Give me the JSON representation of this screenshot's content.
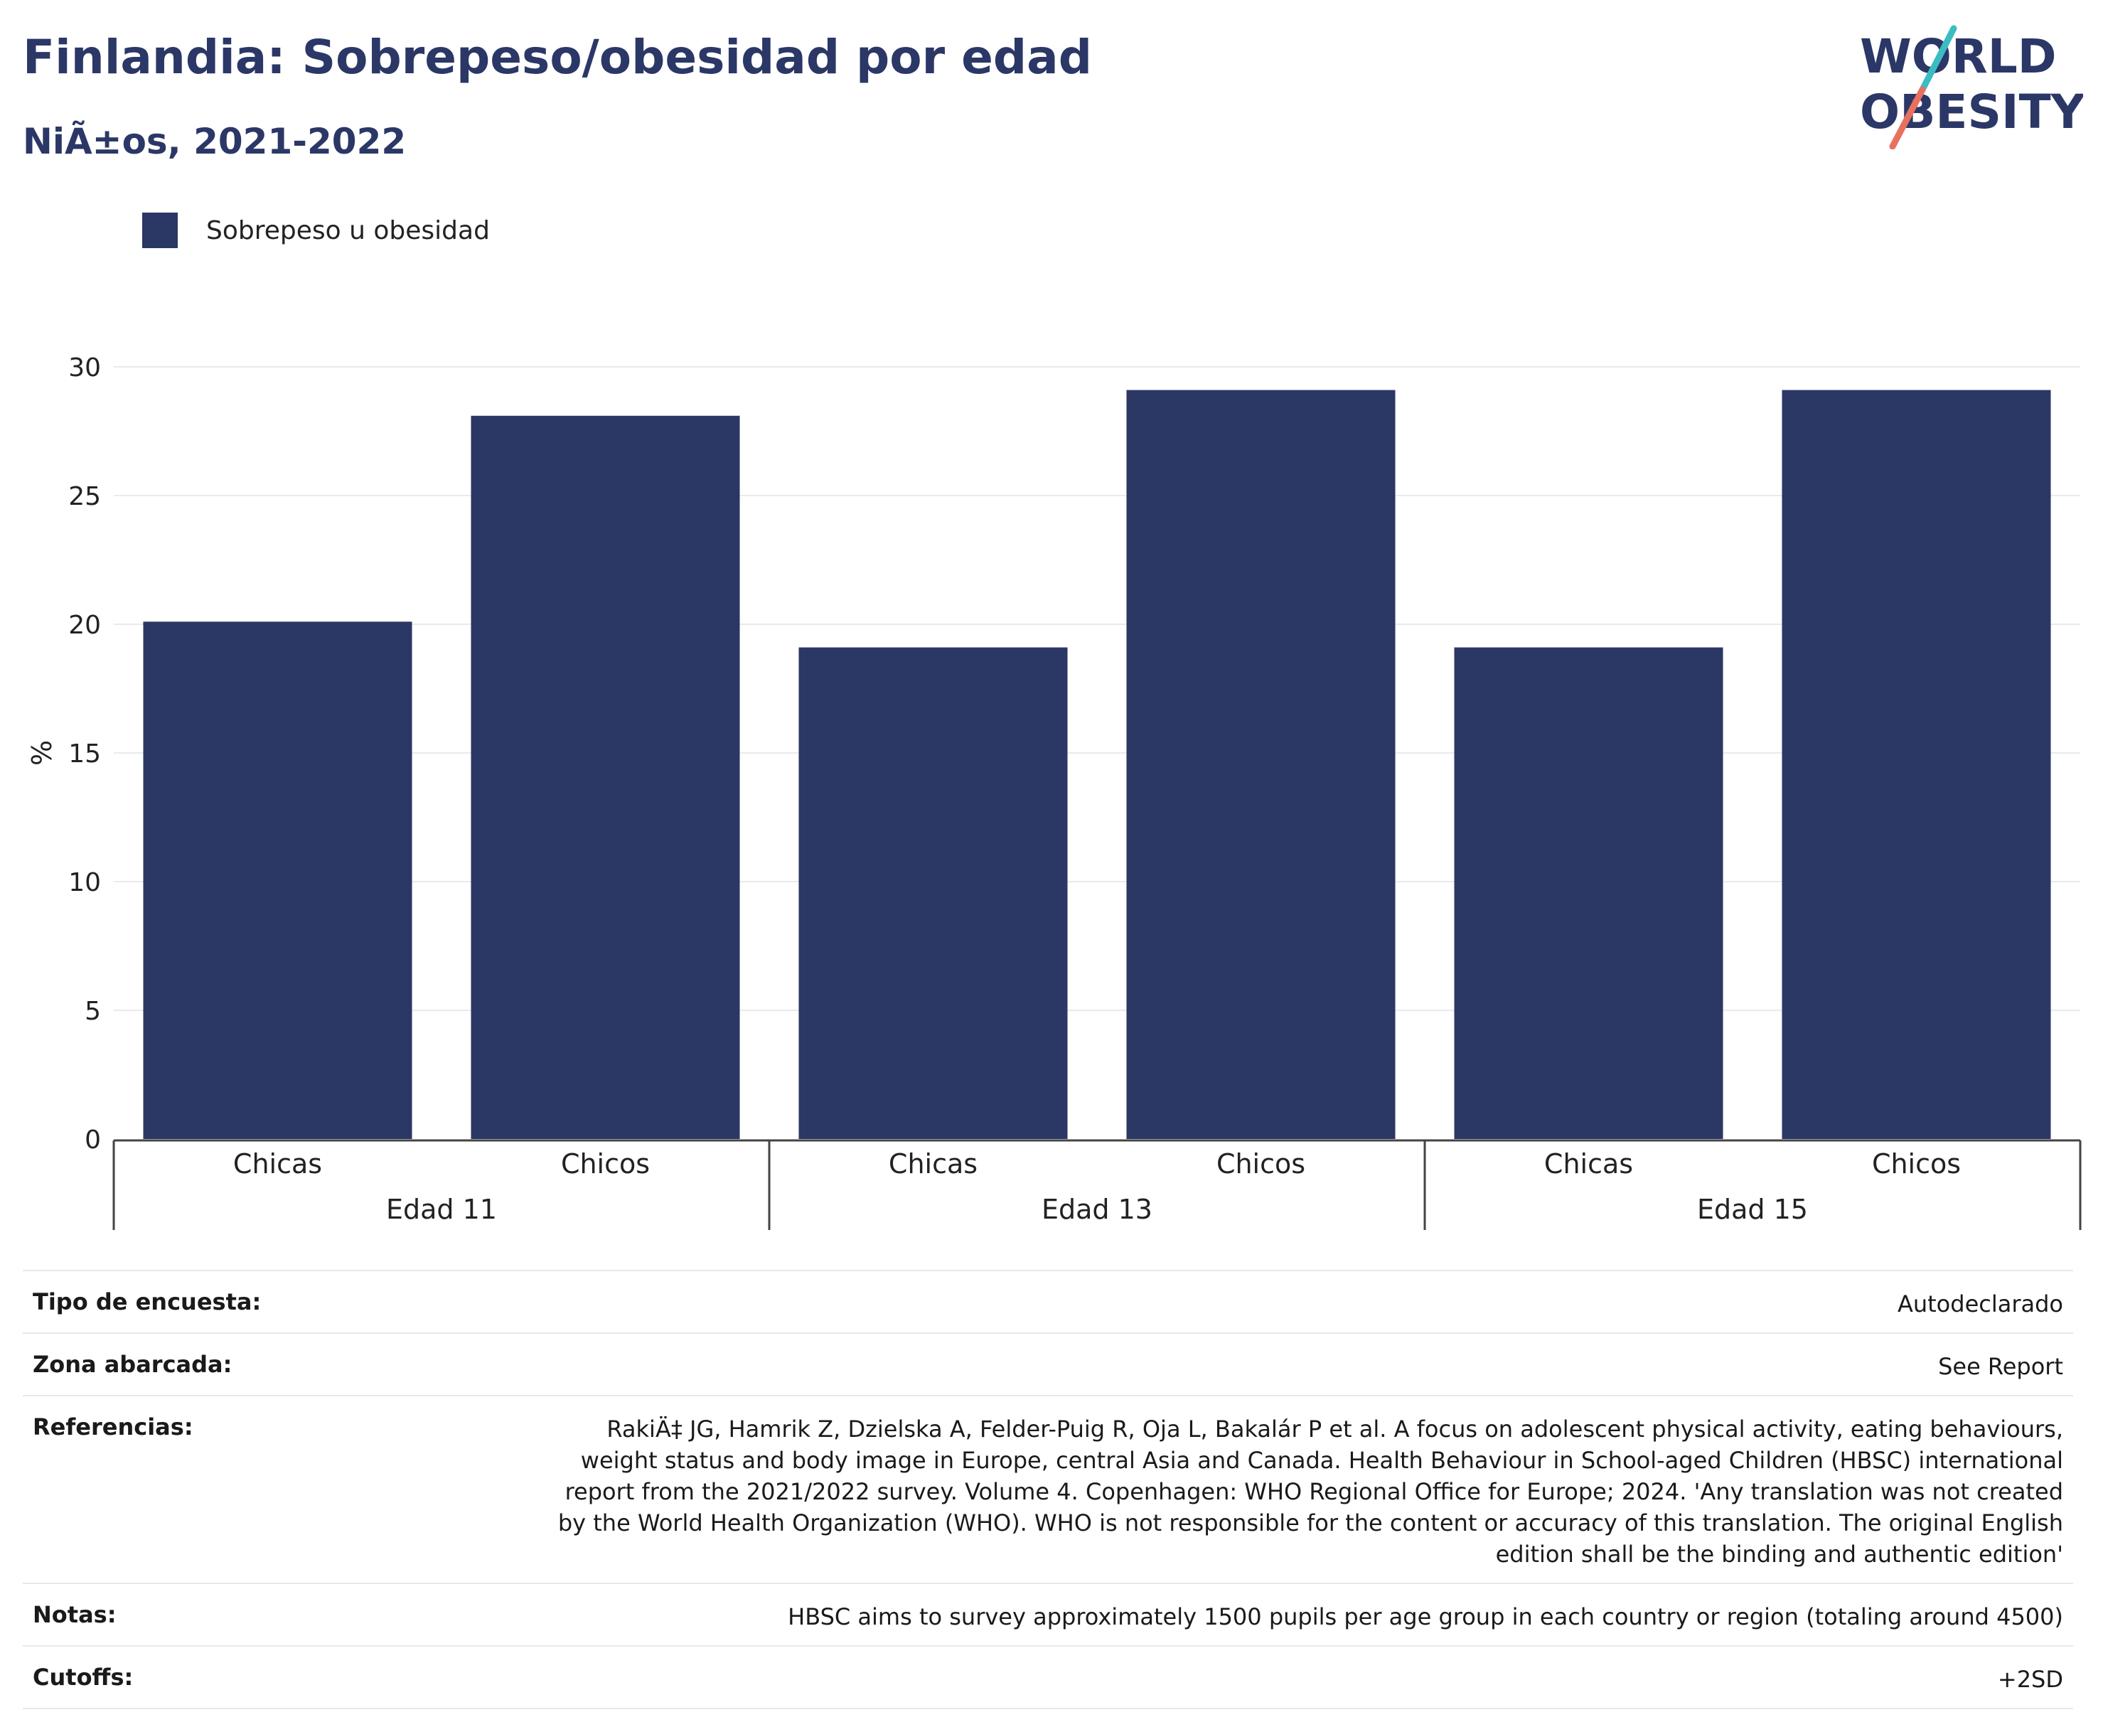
{
  "header": {
    "title": "Finlandia: Sobrepeso/obesidad por edad",
    "subtitle": "NiÃ±os, 2021-2022"
  },
  "logo": {
    "line1": "WORLD",
    "line2": "OBESITY",
    "text_color": "#2b3766",
    "accent_colors": [
      "#3bbcc3",
      "#e8705e"
    ]
  },
  "legend": {
    "label": "Sobrepeso u obesidad",
    "color": "#2b3764"
  },
  "chart_data": {
    "type": "bar",
    "ylabel": "%",
    "ylim": [
      0,
      30
    ],
    "yticks": [
      "0",
      "5",
      "10",
      "15",
      "20",
      "25",
      "30"
    ],
    "grid": true,
    "legend_position": "top-left",
    "groups": [
      {
        "label": "Edad 11",
        "categories": [
          "Chicas",
          "Chicos"
        ],
        "values": [
          20.1,
          28.1
        ]
      },
      {
        "label": "Edad 13",
        "categories": [
          "Chicas",
          "Chicos"
        ],
        "values": [
          19.1,
          29.1
        ]
      },
      {
        "label": "Edad 15",
        "categories": [
          "Chicas",
          "Chicos"
        ],
        "values": [
          19.1,
          29.1
        ]
      }
    ],
    "series": [
      {
        "name": "Sobrepeso u obesidad",
        "color": "#2b3764"
      }
    ]
  },
  "info": [
    {
      "key": "Tipo de encuesta:",
      "value": "Autodeclarado"
    },
    {
      "key": "Zona abarcada:",
      "value": "See Report"
    },
    {
      "key": "Referencias:",
      "value": "RakiÄ‡ JG, Hamrik Z, Dzielska A, Felder-Puig R, Oja L, Bakalár P et al. A focus on adolescent physical activity, eating behaviours, weight status and body image in Europe, central Asia and Canada. Health Behaviour in School-aged Children (HBSC) international report from the 2021/2022 survey. Volume 4. Copenhagen: WHO Regional Office for Europe; 2024. 'Any translation was not created by the World Health Organization (WHO). WHO is not responsible for the content or accuracy of this translation. The original English edition shall be the binding and authentic edition'"
    },
    {
      "key": "Notas:",
      "value": "HBSC aims to survey approximately 1500 pupils per age group in each country or region (totaling around 4500)"
    },
    {
      "key": "Cutoffs:",
      "value": "+2SD"
    }
  ]
}
